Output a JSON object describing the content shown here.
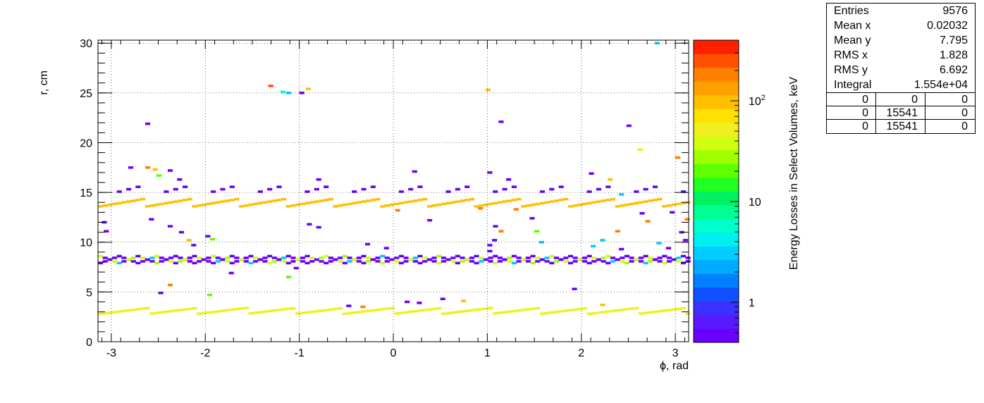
{
  "chart_data": {
    "type": "heatmap",
    "xlabel": "ϕ, rad",
    "ylabel": "r, cm",
    "zlabel": "Energy Losses in Select Volumes, keV",
    "xlim": [
      -3.1416,
      3.1416
    ],
    "ylim": [
      0,
      30.3
    ],
    "x_ticks": [
      "-3",
      "-2",
      "-1",
      "0",
      "1",
      "2",
      "3"
    ],
    "y_ticks": [
      "0",
      "5",
      "10",
      "15",
      "20",
      "25",
      "30"
    ],
    "z_scale": "log",
    "zlim": [
      0.4,
      400
    ],
    "z_ticks": [
      "1",
      "10",
      "10²"
    ],
    "grid": true,
    "palette": [
      "#6a00ff",
      "#5a18ff",
      "#3a30ff",
      "#1050ff",
      "#0080ff",
      "#00aaff",
      "#00ccff",
      "#00f0f0",
      "#00ffcc",
      "#00ff90",
      "#00f060",
      "#20ff20",
      "#60ff00",
      "#a0ff00",
      "#d0ff10",
      "#f0f020",
      "#ffe000",
      "#ffc000",
      "#ffa000",
      "#ff8000",
      "#ff5000",
      "#ff2000"
    ],
    "bands": [
      {
        "name": "layer-3cm",
        "r": [
          2.8,
          3.4
        ],
        "value": 60,
        "period": 0.52
      },
      {
        "name": "layer-8cm",
        "r": [
          7.9,
          8.6
        ],
        "value": 0.5,
        "period": 0.2
      },
      {
        "name": "layer-14cm",
        "r": [
          13.6,
          14.4
        ],
        "value": 100,
        "period": 0.5
      },
      {
        "name": "spiral-15cm",
        "r": [
          14.6,
          15.8
        ],
        "value": 0.5,
        "period": 0.5
      }
    ],
    "points": [
      {
        "x": -1.33,
        "y": 25.7,
        "v": 250
      },
      {
        "x": -1.2,
        "y": 25.1,
        "v": 6
      },
      {
        "x": -1.14,
        "y": 25.0,
        "v": 3
      },
      {
        "x": -1.0,
        "y": 25.0,
        "v": 0.5
      },
      {
        "x": -0.93,
        "y": 25.4,
        "v": 100
      },
      {
        "x": 0.98,
        "y": 25.3,
        "v": 100
      },
      {
        "x": -2.64,
        "y": 21.9,
        "v": 0.5
      },
      {
        "x": 1.12,
        "y": 22.1,
        "v": 0.5
      },
      {
        "x": 2.48,
        "y": 21.7,
        "v": 0.5
      },
      {
        "x": 2.6,
        "y": 19.3,
        "v": 40
      },
      {
        "x": 3.0,
        "y": 18.5,
        "v": 200
      },
      {
        "x": -2.82,
        "y": 17.5,
        "v": 0.5
      },
      {
        "x": -2.64,
        "y": 17.5,
        "v": 200
      },
      {
        "x": -2.56,
        "y": 17.3,
        "v": 100
      },
      {
        "x": -2.52,
        "y": 16.7,
        "v": 20
      },
      {
        "x": -2.4,
        "y": 17.2,
        "v": 0.5
      },
      {
        "x": -2.3,
        "y": 16.3,
        "v": 0.5
      },
      {
        "x": -0.82,
        "y": 16.3,
        "v": 0.5
      },
      {
        "x": 0.2,
        "y": 17.1,
        "v": 0.5
      },
      {
        "x": 1.0,
        "y": 17.0,
        "v": 0.5
      },
      {
        "x": 2.08,
        "y": 16.9,
        "v": 0.5
      },
      {
        "x": 2.28,
        "y": 16.3,
        "v": 100
      },
      {
        "x": 1.2,
        "y": 16.3,
        "v": 0.5
      },
      {
        "x": -3.1,
        "y": 12.0,
        "v": 0.5
      },
      {
        "x": -3.08,
        "y": 11.1,
        "v": 0.5
      },
      {
        "x": -2.6,
        "y": 12.3,
        "v": 0.5
      },
      {
        "x": -2.4,
        "y": 11.6,
        "v": 0.5
      },
      {
        "x": -2.28,
        "y": 11.0,
        "v": 0.5
      },
      {
        "x": -2.0,
        "y": 10.6,
        "v": 0.5
      },
      {
        "x": -0.92,
        "y": 11.8,
        "v": 0.5
      },
      {
        "x": -0.82,
        "y": 11.5,
        "v": 0.5
      },
      {
        "x": 0.02,
        "y": 13.2,
        "v": 200
      },
      {
        "x": 0.36,
        "y": 12.2,
        "v": 0.5
      },
      {
        "x": 1.06,
        "y": 11.6,
        "v": 0.5
      },
      {
        "x": 1.12,
        "y": 11.1,
        "v": 200
      },
      {
        "x": 1.5,
        "y": 11.1,
        "v": 20
      },
      {
        "x": 1.28,
        "y": 13.3,
        "v": 200
      },
      {
        "x": 2.36,
        "y": 11.1,
        "v": 200
      },
      {
        "x": 2.62,
        "y": 12.9,
        "v": 0.5
      },
      {
        "x": 2.68,
        "y": 12.1,
        "v": 200
      },
      {
        "x": 3.1,
        "y": 12.3,
        "v": 200
      },
      {
        "x": 3.04,
        "y": 11.0,
        "v": 0.5
      },
      {
        "x": 2.94,
        "y": 13.0,
        "v": 0.5
      },
      {
        "x": -2.4,
        "y": 5.7,
        "v": 200
      },
      {
        "x": -2.5,
        "y": 4.9,
        "v": 0.5
      },
      {
        "x": -1.98,
        "y": 4.7,
        "v": 20
      },
      {
        "x": -1.75,
        "y": 6.9,
        "v": 0.5
      },
      {
        "x": -1.14,
        "y": 6.5,
        "v": 20
      },
      {
        "x": -1.06,
        "y": 7.4,
        "v": 0.5
      },
      {
        "x": 0.5,
        "y": 4.3,
        "v": 0.5
      },
      {
        "x": 1.9,
        "y": 5.3,
        "v": 0.5
      },
      {
        "x": 0.72,
        "y": 4.1,
        "v": 100
      },
      {
        "x": 2.2,
        "y": 3.7,
        "v": 100
      },
      {
        "x": -0.3,
        "y": 9.8,
        "v": 0.5
      },
      {
        "x": -0.1,
        "y": 9.4,
        "v": 0.5
      },
      {
        "x": 1.0,
        "y": 9.7,
        "v": 0.5
      },
      {
        "x": 1.0,
        "y": 9.1,
        "v": 0.5
      },
      {
        "x": 2.1,
        "y": 9.6,
        "v": 3
      },
      {
        "x": 2.4,
        "y": 9.3,
        "v": 0.5
      },
      {
        "x": 2.8,
        "y": 9.9,
        "v": 3
      },
      {
        "x": 2.9,
        "y": 9.4,
        "v": 0.5
      },
      {
        "x": 3.08,
        "y": 10.2,
        "v": 0.5
      },
      {
        "x": 2.78,
        "y": 30.0,
        "v": 3
      },
      {
        "x": 2.4,
        "y": 14.8,
        "v": 3
      },
      {
        "x": 2.2,
        "y": 10.2,
        "v": 3
      },
      {
        "x": 1.55,
        "y": 10.0,
        "v": 3
      },
      {
        "x": 1.05,
        "y": 10.2,
        "v": 0.5
      },
      {
        "x": -1.95,
        "y": 10.3,
        "v": 20
      },
      {
        "x": -2.15,
        "y": 9.7,
        "v": 0.5
      },
      {
        "x": -2.2,
        "y": 10.2,
        "v": 100
      },
      {
        "x": 0.25,
        "y": 3.9,
        "v": 0.5
      },
      {
        "x": 0.12,
        "y": 4.0,
        "v": 0.5
      },
      {
        "x": -0.5,
        "y": 3.6,
        "v": 0.5
      },
      {
        "x": -0.35,
        "y": 3.5,
        "v": 200
      },
      {
        "x": 0.9,
        "y": 13.4,
        "v": 200
      },
      {
        "x": 1.45,
        "y": 12.4,
        "v": 0.5
      }
    ]
  },
  "stats": {
    "rows": [
      {
        "label": "Entries",
        "value": "9576"
      },
      {
        "label": "Mean x",
        "value": "0.02032"
      },
      {
        "label": "Mean y",
        "value": "7.795"
      },
      {
        "label": "RMS x",
        "value": "1.828"
      },
      {
        "label": "RMS y",
        "value": "6.692"
      },
      {
        "label": "Integral",
        "value": "1.554e+04"
      }
    ],
    "grid": [
      [
        "0",
        "0",
        "0"
      ],
      [
        "0",
        "15541",
        "0"
      ],
      [
        "0",
        "15541",
        "0"
      ]
    ]
  }
}
